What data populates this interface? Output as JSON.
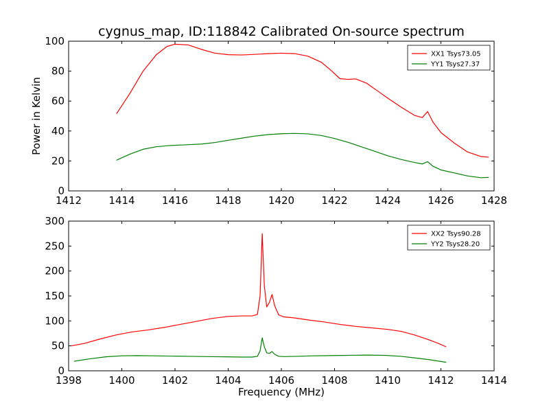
{
  "figure_title": "cygnus_map, ID:118842 Calibrated On-source spectrum",
  "chart_data": [
    {
      "type": "line",
      "title": "cygnus_map, ID:118842 Calibrated On-source spectrum",
      "xlabel": "",
      "ylabel": "Power in Kelvin",
      "xlim": [
        1412,
        1428
      ],
      "ylim": [
        0,
        100
      ],
      "xticks": [
        1412,
        1414,
        1416,
        1418,
        1420,
        1422,
        1424,
        1426,
        1428
      ],
      "yticks": [
        0,
        20,
        40,
        60,
        80,
        100
      ],
      "grid": false,
      "legend": "top-right",
      "series": [
        {
          "name": "XX1 Tsys73.05",
          "color": "#ff0000",
          "x": [
            1413.8,
            1414.3,
            1414.8,
            1415.3,
            1415.7,
            1416.0,
            1416.5,
            1417.0,
            1417.5,
            1418.0,
            1418.5,
            1419.0,
            1419.5,
            1420.0,
            1420.5,
            1421.0,
            1421.5,
            1421.9,
            1422.2,
            1422.5,
            1422.8,
            1423.2,
            1423.6,
            1424.0,
            1424.5,
            1425.0,
            1425.3,
            1425.5,
            1425.7,
            1426.0,
            1426.5,
            1427.0,
            1427.5,
            1427.8
          ],
          "y": [
            51.5,
            65,
            80,
            91,
            96.5,
            98,
            97.5,
            94.5,
            92,
            91,
            90.8,
            91.2,
            91.7,
            92,
            91.7,
            90,
            86,
            80,
            75,
            74.5,
            74.8,
            72,
            67,
            62,
            56,
            50.5,
            49,
            53,
            46,
            39,
            32,
            26,
            23,
            22.5
          ]
        },
        {
          "name": "YY1 Tsys27.37",
          "color": "#008000",
          "x": [
            1413.8,
            1414.3,
            1414.8,
            1415.3,
            1415.8,
            1416.3,
            1417.0,
            1417.5,
            1418.0,
            1418.5,
            1419.0,
            1419.5,
            1420.0,
            1420.5,
            1421.0,
            1421.5,
            1422.0,
            1422.5,
            1423.0,
            1423.5,
            1424.0,
            1424.5,
            1425.0,
            1425.3,
            1425.5,
            1425.7,
            1426.0,
            1426.5,
            1427.0,
            1427.5,
            1427.8
          ],
          "y": [
            20.5,
            24.5,
            27.8,
            29.5,
            30.3,
            30.7,
            31.3,
            32.3,
            33.8,
            35.2,
            36.6,
            37.6,
            38.2,
            38.4,
            38.1,
            37,
            35,
            32.5,
            29.5,
            26.5,
            23.5,
            21,
            19,
            18,
            19.5,
            16.5,
            14,
            12,
            10,
            8.8,
            9
          ]
        }
      ]
    },
    {
      "type": "line",
      "title": "",
      "xlabel": "Frequency (MHz)",
      "ylabel": "",
      "xlim": [
        1398,
        1414
      ],
      "ylim": [
        0,
        300
      ],
      "xticks": [
        1398,
        1400,
        1402,
        1404,
        1406,
        1408,
        1410,
        1412,
        1414
      ],
      "yticks": [
        0,
        50,
        100,
        150,
        200,
        250,
        300
      ],
      "grid": false,
      "legend": "top-right",
      "series": [
        {
          "name": "XX2 Tsys90.28",
          "color": "#ff0000",
          "x": [
            1398.1,
            1398.6,
            1399.2,
            1399.8,
            1400.4,
            1401.0,
            1401.6,
            1402.2,
            1402.8,
            1403.4,
            1404.0,
            1404.5,
            1404.9,
            1405.1,
            1405.2,
            1405.28,
            1405.36,
            1405.45,
            1405.55,
            1405.65,
            1405.75,
            1405.9,
            1406.1,
            1406.5,
            1407.0,
            1407.6,
            1408.2,
            1408.8,
            1409.4,
            1410.0,
            1410.5,
            1411.0,
            1411.5,
            1411.9,
            1412.2
          ],
          "y": [
            50,
            55,
            64,
            72,
            78,
            82,
            87,
            93,
            99,
            105,
            109,
            110,
            110,
            113,
            150,
            275,
            170,
            128,
            137,
            153,
            130,
            112,
            108,
            106,
            102,
            98,
            93,
            89,
            86,
            83,
            79,
            72,
            63,
            55,
            48
          ]
        },
        {
          "name": "YY2 Tsys28.20",
          "color": "#008000",
          "x": [
            1398.2,
            1398.8,
            1399.4,
            1400.0,
            1400.6,
            1401.2,
            1401.8,
            1402.5,
            1403.2,
            1403.9,
            1404.5,
            1404.9,
            1405.1,
            1405.2,
            1405.28,
            1405.36,
            1405.45,
            1405.55,
            1405.65,
            1405.75,
            1405.9,
            1406.1,
            1406.6,
            1407.2,
            1407.8,
            1408.5,
            1409.2,
            1409.9,
            1410.5,
            1411.0,
            1411.6,
            1412.2
          ],
          "y": [
            19,
            24,
            28,
            30,
            30.5,
            30,
            29.5,
            29,
            28.5,
            28,
            27.5,
            27.5,
            29,
            40,
            66,
            48,
            36,
            35,
            38.5,
            33,
            29,
            28.5,
            29,
            30,
            30.5,
            31,
            31.5,
            31,
            29,
            26,
            22,
            17
          ]
        }
      ]
    }
  ]
}
